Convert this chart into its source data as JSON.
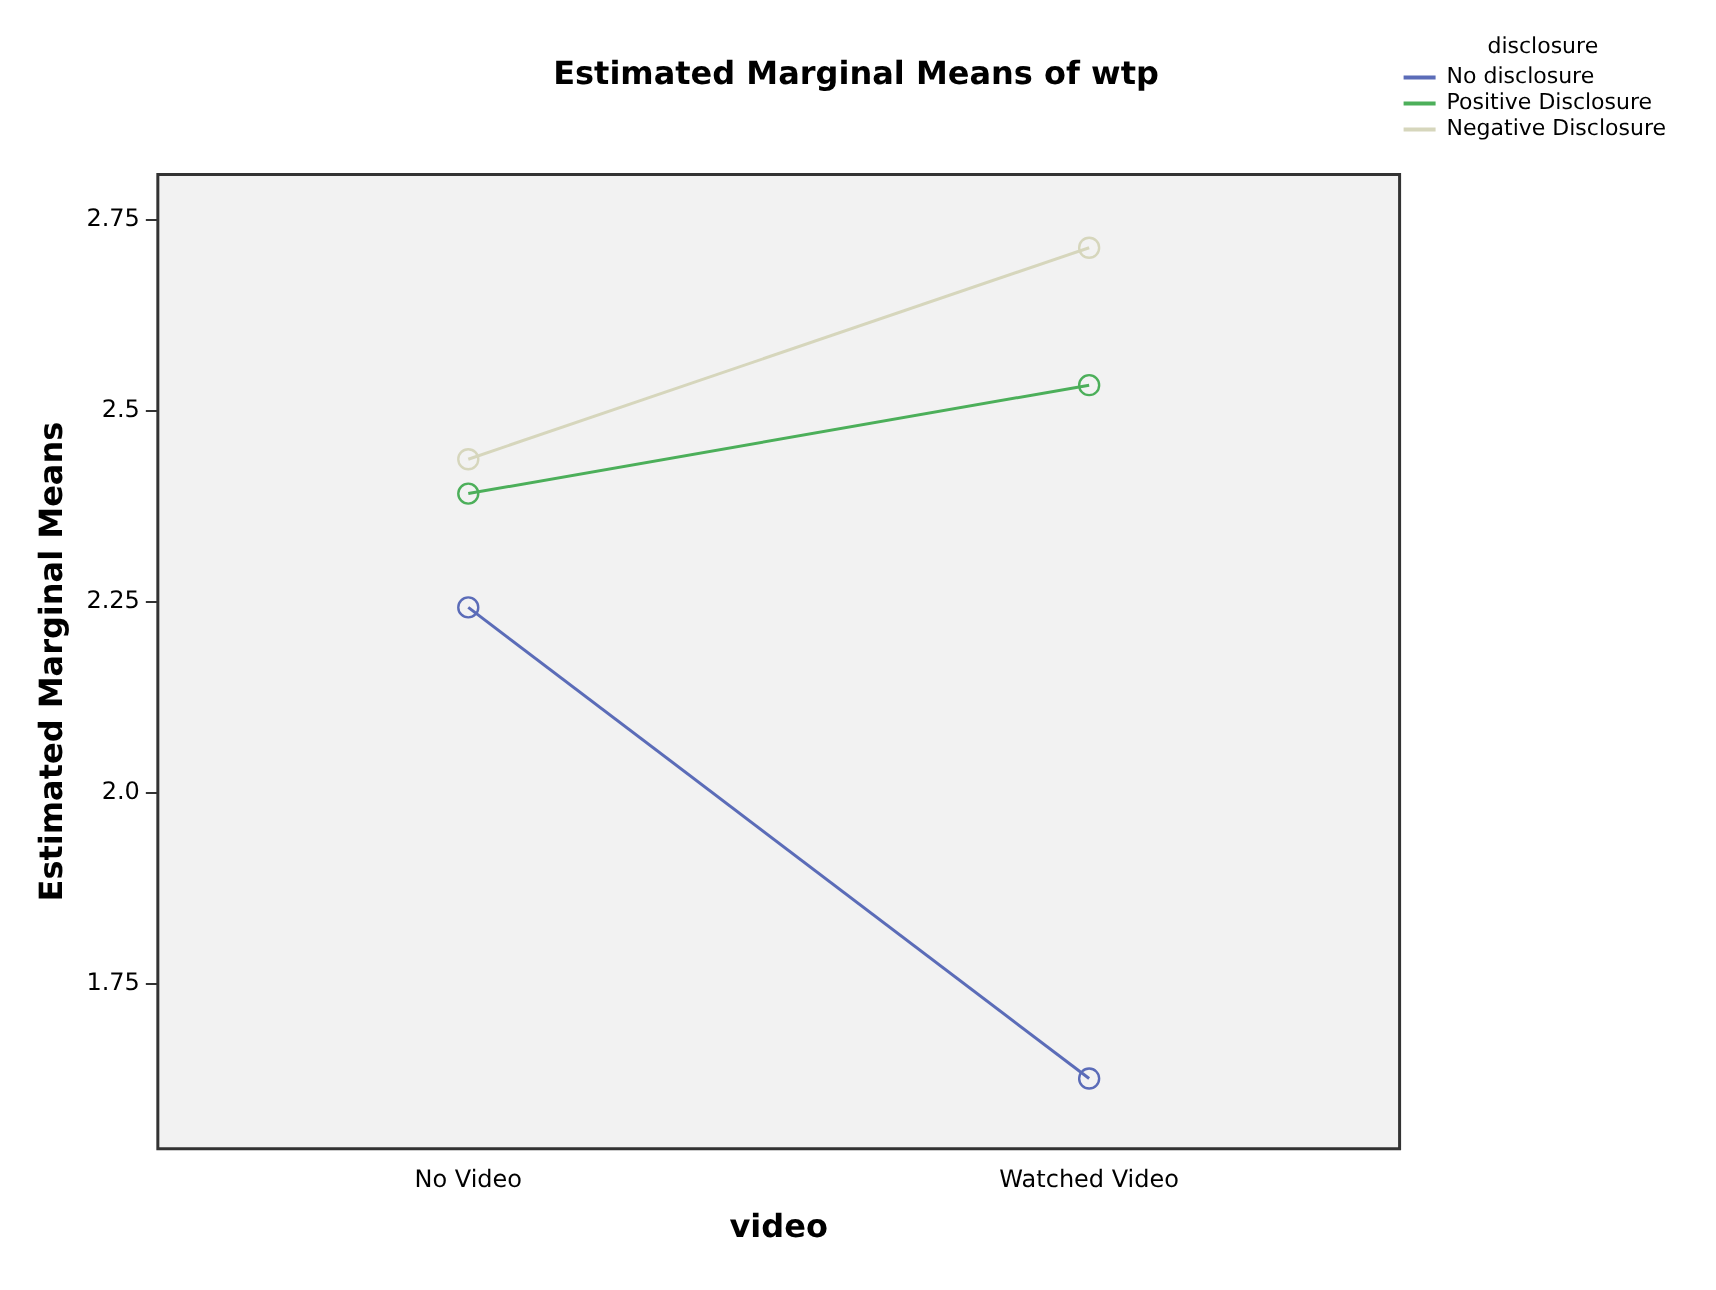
{
  "chart_data": {
    "type": "line",
    "title": "Estimated Marginal Means of wtp",
    "xlabel": "video",
    "ylabel": "Estimated Marginal Means",
    "legend_title": "disclosure",
    "categories": [
      "No Video",
      "Watched Video"
    ],
    "series": [
      {
        "name": "No disclosure",
        "color": "#5b6cb8",
        "values": [
          2.243,
          1.626
        ]
      },
      {
        "name": "Positive Disclosure",
        "color": "#4caf5a",
        "values": [
          2.392,
          2.534
        ]
      },
      {
        "name": "Negative Disclosure",
        "color": "#d6d6bc",
        "values": [
          2.437,
          2.714
        ]
      }
    ],
    "ylim": [
      1.534,
      2.81
    ],
    "yticks": [
      {
        "value": 1.75,
        "label": "1.75"
      },
      {
        "value": 2.0,
        "label": "2.0"
      },
      {
        "value": 2.25,
        "label": "2.25"
      },
      {
        "value": 2.5,
        "label": "2.5"
      },
      {
        "value": 2.75,
        "label": "2.75"
      }
    ],
    "grid": false,
    "legend": "top right",
    "marker": "circle",
    "line_style": "solid"
  }
}
